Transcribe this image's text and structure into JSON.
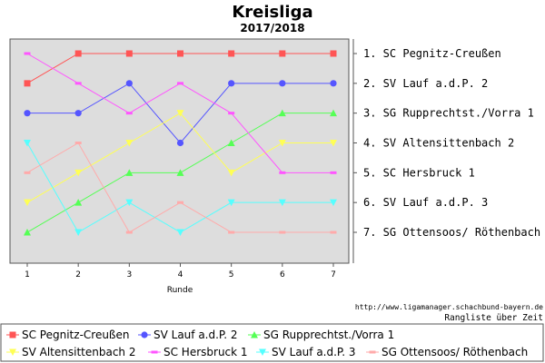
{
  "chart_data": {
    "type": "line",
    "title": "Kreisliga",
    "subtitle": "2017/2018",
    "xlabel": "Runde",
    "x": [
      1,
      2,
      3,
      4,
      5,
      6,
      7
    ],
    "ylim": [
      0.5,
      7.5
    ],
    "y_inverted": true,
    "grid": false,
    "legend_position": "bottom",
    "right_labels": [
      "1. SC Pegnitz-Creußen",
      "2. SV Lauf a.d.P. 2",
      "3. SG Rupprechtst./Vorra 1",
      "4. SV Altensittenbach 2",
      "5. SC Hersbruck 1",
      "6. SV Lauf a.d.P. 3",
      "7. SG Ottensoos/ Röthenbach"
    ],
    "series": [
      {
        "name": "SC Pegnitz-Creußen",
        "color": "#ff5555",
        "marker": "square",
        "values": [
          2,
          1,
          1,
          1,
          1,
          1,
          1
        ]
      },
      {
        "name": "SV Lauf a.d.P. 2",
        "color": "#5555ff",
        "marker": "circle",
        "values": [
          3,
          3,
          2,
          4,
          2,
          2,
          2
        ]
      },
      {
        "name": "SG Rupprechtst./Vorra 1",
        "color": "#55ff55",
        "marker": "triangle-up",
        "values": [
          7,
          6,
          5,
          5,
          4,
          3,
          3
        ]
      },
      {
        "name": "SV Altensittenbach 2",
        "color": "#ffff55",
        "marker": "triangle-down",
        "values": [
          6,
          5,
          4,
          3,
          5,
          4,
          4
        ]
      },
      {
        "name": "SC Hersbruck 1",
        "color": "#ff55ff",
        "marker": "dash",
        "values": [
          1,
          2,
          3,
          2,
          3,
          5,
          5
        ]
      },
      {
        "name": "SV Lauf a.d.P. 3",
        "color": "#55ffff",
        "marker": "triangle-down",
        "values": [
          4,
          7,
          6,
          7,
          6,
          6,
          6
        ]
      },
      {
        "name": "SG Ottensoos/ Röthenbach",
        "color": "#ffaaaa",
        "marker": "dash",
        "values": [
          5,
          4,
          7,
          6,
          7,
          7,
          7
        ]
      }
    ]
  },
  "footer": {
    "url": "http://www.ligamanager.schachbund-bayern.de",
    "note": "Rangliste über Zeit"
  }
}
